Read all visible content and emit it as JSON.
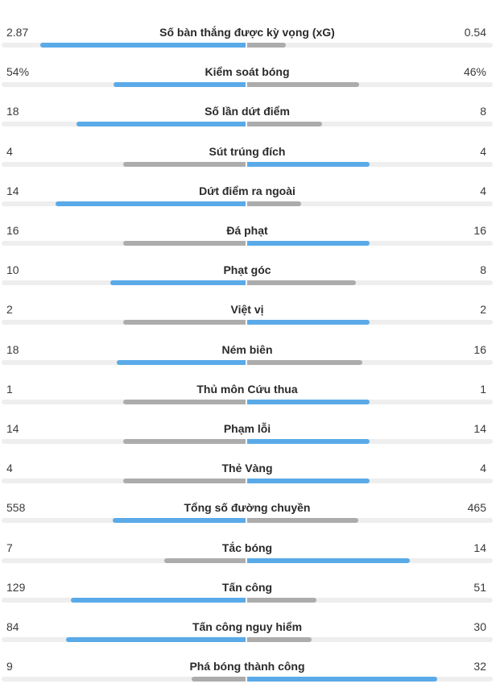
{
  "colors": {
    "leader": "#5aaae8",
    "trailer": "#acacac",
    "track": "#eeeeee"
  },
  "stats": [
    {
      "label": "Số bàn thắng được kỳ vọng (xG)",
      "home": "2.87",
      "away": "0.54",
      "home_value": 2.87,
      "away_value": 0.54
    },
    {
      "label": "Kiểm soát bóng",
      "home": "54%",
      "away": "46%",
      "home_value": 54,
      "away_value": 46
    },
    {
      "label": "Số lần dứt điểm",
      "home": "18",
      "away": "8",
      "home_value": 18,
      "away_value": 8
    },
    {
      "label": "Sút trúng đích",
      "home": "4",
      "away": "4",
      "home_value": 4,
      "away_value": 4
    },
    {
      "label": "Dứt điểm ra ngoài",
      "home": "14",
      "away": "4",
      "home_value": 14,
      "away_value": 4
    },
    {
      "label": "Đá phạt",
      "home": "16",
      "away": "16",
      "home_value": 16,
      "away_value": 16
    },
    {
      "label": "Phạt góc",
      "home": "10",
      "away": "8",
      "home_value": 10,
      "away_value": 8
    },
    {
      "label": "Việt vị",
      "home": "2",
      "away": "2",
      "home_value": 2,
      "away_value": 2
    },
    {
      "label": "Ném biên",
      "home": "18",
      "away": "16",
      "home_value": 18,
      "away_value": 16
    },
    {
      "label": "Thủ môn Cứu thua",
      "home": "1",
      "away": "1",
      "home_value": 1,
      "away_value": 1
    },
    {
      "label": "Phạm lỗi",
      "home": "14",
      "away": "14",
      "home_value": 14,
      "away_value": 14
    },
    {
      "label": "Thẻ Vàng",
      "home": "4",
      "away": "4",
      "home_value": 4,
      "away_value": 4
    },
    {
      "label": "Tổng số đường chuyền",
      "home": "558",
      "away": "465",
      "home_value": 558,
      "away_value": 465
    },
    {
      "label": "Tắc bóng",
      "home": "7",
      "away": "14",
      "home_value": 7,
      "away_value": 14
    },
    {
      "label": "Tấn công",
      "home": "129",
      "away": "51",
      "home_value": 129,
      "away_value": 51
    },
    {
      "label": "Tấn công nguy hiểm",
      "home": "84",
      "away": "30",
      "home_value": 84,
      "away_value": 30
    },
    {
      "label": "Phá bóng thành công",
      "home": "9",
      "away": "32",
      "home_value": 9,
      "away_value": 32
    }
  ]
}
